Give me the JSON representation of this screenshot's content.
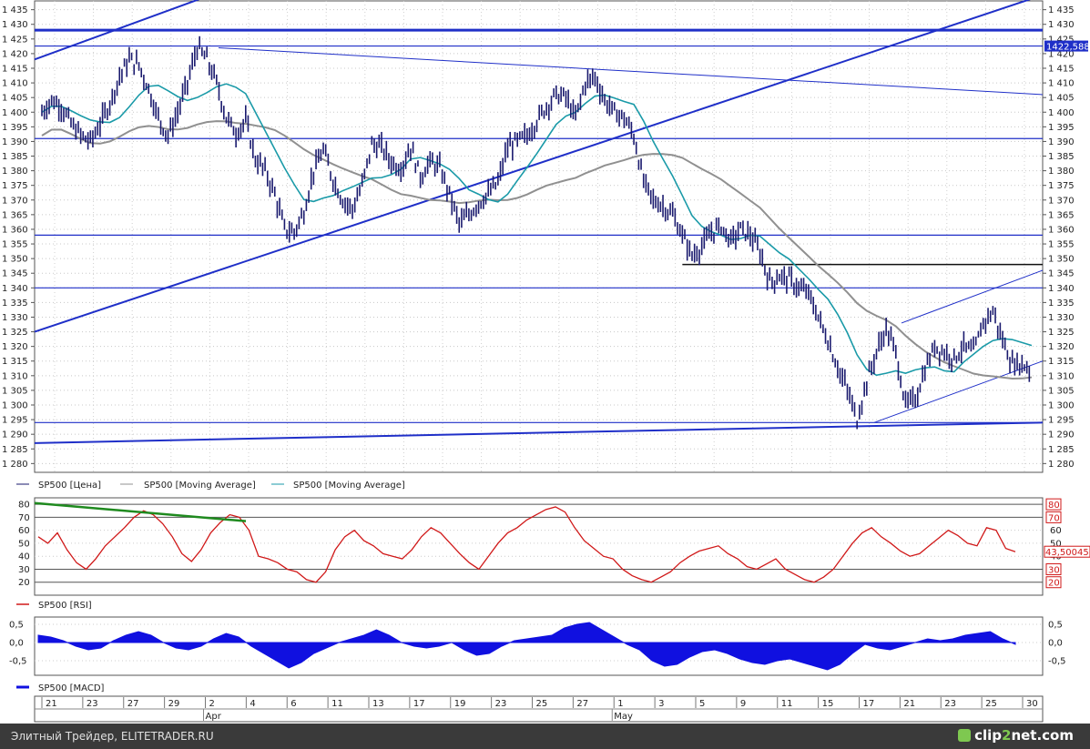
{
  "chart_data": [
    {
      "type": "candlestick",
      "series_name": "SP500 [Цена]",
      "ylim": [
        1280,
        1435
      ],
      "y_ticks": [
        "1 280",
        "1 285",
        "1 290",
        "1 295",
        "1 300",
        "1 305",
        "1 310",
        "1 315",
        "1 320",
        "1 325",
        "1 330",
        "1 335",
        "1 340",
        "1 345",
        "1 350",
        "1 355",
        "1 360",
        "1 365",
        "1 370",
        "1 375",
        "1 380",
        "1 385",
        "1 390",
        "1 395",
        "1 400",
        "1 405",
        "1 410",
        "1 415",
        "1 420",
        "1 425",
        "1 430",
        "1 435"
      ],
      "last_value_label": "1422,588",
      "price_path": [
        [
          0,
          1400
        ],
        [
          1,
          1404
        ],
        [
          2,
          1402
        ],
        [
          3,
          1396
        ],
        [
          4,
          1392
        ],
        [
          5,
          1390
        ],
        [
          6,
          1396
        ],
        [
          7,
          1403
        ],
        [
          8,
          1412
        ],
        [
          9,
          1418
        ],
        [
          10,
          1416
        ],
        [
          11,
          1408
        ],
        [
          12,
          1398
        ],
        [
          13,
          1392
        ],
        [
          14,
          1400
        ],
        [
          15,
          1410
        ],
        [
          16,
          1422
        ],
        [
          17,
          1418
        ],
        [
          18,
          1410
        ],
        [
          19,
          1398
        ],
        [
          20,
          1393
        ],
        [
          21,
          1397
        ],
        [
          22,
          1384
        ],
        [
          23,
          1380
        ],
        [
          24,
          1372
        ],
        [
          25,
          1360
        ],
        [
          26,
          1359
        ],
        [
          27,
          1366
        ],
        [
          28,
          1380
        ],
        [
          29,
          1387
        ],
        [
          30,
          1377
        ],
        [
          31,
          1370
        ],
        [
          32,
          1367
        ],
        [
          33,
          1375
        ],
        [
          34,
          1389
        ],
        [
          35,
          1388
        ],
        [
          36,
          1383
        ],
        [
          37,
          1381
        ],
        [
          38,
          1388
        ],
        [
          39,
          1378
        ],
        [
          40,
          1383
        ],
        [
          41,
          1381
        ],
        [
          42,
          1372
        ],
        [
          43,
          1362
        ],
        [
          44,
          1365
        ],
        [
          45,
          1369
        ],
        [
          46,
          1372
        ],
        [
          47,
          1376
        ],
        [
          48,
          1388
        ],
        [
          49,
          1390
        ],
        [
          50,
          1392
        ],
        [
          51,
          1397
        ],
        [
          52,
          1402
        ],
        [
          53,
          1406
        ],
        [
          54,
          1405
        ],
        [
          55,
          1398
        ],
        [
          56,
          1410
        ],
        [
          57,
          1412
        ],
        [
          58,
          1404
        ],
        [
          59,
          1400
        ],
        [
          60,
          1398
        ],
        [
          61,
          1392
        ],
        [
          62,
          1376
        ],
        [
          63,
          1370
        ],
        [
          64,
          1368
        ],
        [
          65,
          1365
        ],
        [
          66,
          1358
        ],
        [
          67,
          1351
        ],
        [
          68,
          1354
        ],
        [
          69,
          1359
        ],
        [
          70,
          1361
        ],
        [
          71,
          1356
        ],
        [
          72,
          1360
        ],
        [
          73,
          1358
        ],
        [
          74,
          1352
        ],
        [
          75,
          1342
        ],
        [
          76,
          1344
        ],
        [
          77,
          1343
        ],
        [
          78,
          1340
        ],
        [
          79,
          1338
        ],
        [
          80,
          1330
        ],
        [
          81,
          1322
        ],
        [
          82,
          1313
        ],
        [
          83,
          1305
        ],
        [
          84,
          1295
        ],
        [
          85,
          1308
        ],
        [
          86,
          1318
        ],
        [
          87,
          1326
        ],
        [
          88,
          1318
        ],
        [
          89,
          1300
        ],
        [
          90,
          1302
        ],
        [
          91,
          1312
        ],
        [
          92,
          1320
        ],
        [
          93,
          1318
        ],
        [
          94,
          1316
        ],
        [
          95,
          1320
        ],
        [
          96,
          1318
        ],
        [
          97,
          1328
        ],
        [
          98,
          1332
        ],
        [
          99,
          1322
        ],
        [
          100,
          1314
        ],
        [
          101,
          1314
        ],
        [
          102,
          1312
        ]
      ],
      "moving_average_1": {
        "name": "SP500 [Moving Average]",
        "color": "#909090"
      },
      "moving_average_2": {
        "name": "SP500 [Moving Average]",
        "color": "#1a9aa8"
      },
      "horizontal_levels": [
        1428,
        1422.588,
        1391,
        1358,
        1340,
        1294
      ],
      "support_level_black": 1348
    },
    {
      "type": "line",
      "series_name": "SP500 [RSI]",
      "ylim": [
        10,
        85
      ],
      "y_ticks": [
        "20",
        "30",
        "40",
        "50",
        "60",
        "70",
        "80"
      ],
      "boxed_ticks": [
        "80",
        "70",
        "30",
        "20"
      ],
      "last_value_label": "43,50045",
      "values": [
        55,
        50,
        58,
        45,
        35,
        30,
        38,
        48,
        55,
        62,
        70,
        75,
        72,
        65,
        55,
        42,
        36,
        45,
        58,
        66,
        72,
        70,
        60,
        40,
        38,
        35,
        30,
        28,
        22,
        20,
        28,
        45,
        55,
        60,
        52,
        48,
        42,
        40,
        38,
        45,
        55,
        62,
        58,
        50,
        42,
        35,
        30,
        40,
        50,
        58,
        62,
        68,
        72,
        76,
        78,
        74,
        62,
        52,
        46,
        40,
        38,
        30,
        25,
        22,
        20,
        24,
        28,
        35,
        40,
        44,
        46,
        48,
        42,
        38,
        32,
        30,
        34,
        38,
        30,
        26,
        22,
        20,
        24,
        30,
        40,
        50,
        58,
        62,
        55,
        50,
        44,
        40,
        42,
        48,
        54,
        60,
        56,
        50,
        48,
        62,
        60,
        46,
        43.5
      ]
    },
    {
      "type": "area",
      "series_name": "SP500 [MACD]",
      "ylim": [
        -0.9,
        0.7
      ],
      "y_ticks": [
        "0,5",
        "0,0",
        "-0,5"
      ],
      "values": [
        0.2,
        0.15,
        0.05,
        -0.1,
        -0.2,
        -0.15,
        0.05,
        0.2,
        0.3,
        0.2,
        0.0,
        -0.15,
        -0.2,
        -0.1,
        0.1,
        0.25,
        0.15,
        -0.1,
        -0.3,
        -0.5,
        -0.7,
        -0.55,
        -0.3,
        -0.15,
        0.0,
        0.1,
        0.2,
        0.35,
        0.2,
        0.0,
        -0.1,
        -0.15,
        -0.1,
        0.0,
        -0.2,
        -0.35,
        -0.3,
        -0.1,
        0.05,
        0.1,
        0.15,
        0.2,
        0.4,
        0.5,
        0.55,
        0.35,
        0.15,
        -0.05,
        -0.2,
        -0.5,
        -0.65,
        -0.6,
        -0.4,
        -0.25,
        -0.2,
        -0.3,
        -0.45,
        -0.55,
        -0.6,
        -0.5,
        -0.45,
        -0.55,
        -0.65,
        -0.75,
        -0.6,
        -0.3,
        -0.05,
        -0.15,
        -0.2,
        -0.1,
        0.0,
        0.1,
        0.05,
        0.1,
        0.2,
        0.25,
        0.3,
        0.1,
        -0.05
      ],
      "x_ticks": [
        "21",
        "23",
        "27",
        "29",
        "2",
        "4",
        "6",
        "11",
        "13",
        "17",
        "19",
        "23",
        "25",
        "27",
        "1",
        "3",
        "5",
        "9",
        "11",
        "15",
        "17",
        "21",
        "23",
        "25",
        "30"
      ],
      "month_labels": [
        "Apr",
        "May"
      ]
    }
  ],
  "legend": {
    "price": "SP500 [Цена]",
    "ma1": "SP500 [Moving Average]",
    "ma2": "SP500 [Moving Average]",
    "rsi": "SP500 [RSI]",
    "macd": "SP500 [MACD]"
  },
  "footer": {
    "source_text": "Элитный Трейдер, ELITETRADER.RU",
    "logo_text_a": "clip",
    "logo_text_b": "2",
    "logo_text_c": "net.com"
  },
  "colors": {
    "price": "#1a1a6e",
    "trend": "#1f2fc8",
    "rsi": "#d01818",
    "macd": "#1010e0",
    "green_trend": "#1f8a1f"
  }
}
